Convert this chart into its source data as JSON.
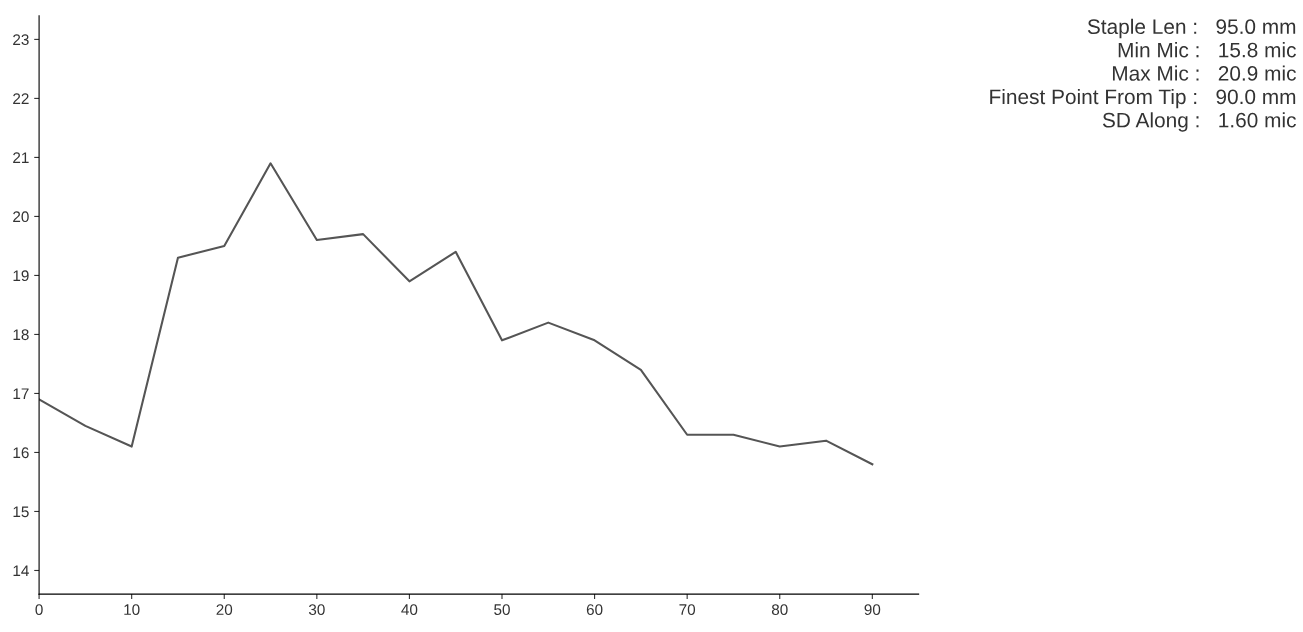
{
  "chart_data": {
    "type": "line",
    "x": [
      0,
      5,
      10,
      15,
      20,
      25,
      30,
      35,
      40,
      45,
      50,
      55,
      60,
      65,
      70,
      75,
      80,
      85,
      90
    ],
    "series": [
      {
        "color": "#555555",
        "values": [
          16.9,
          16.45,
          16.1,
          19.3,
          19.5,
          20.9,
          19.6,
          19.7,
          18.9,
          19.4,
          17.9,
          18.2,
          17.9,
          17.4,
          16.3,
          16.3,
          16.1,
          16.2,
          15.8
        ]
      }
    ],
    "xlim": [
      0,
      95
    ],
    "xticks": [
      0,
      10,
      20,
      30,
      40,
      50,
      60,
      70,
      80,
      90
    ],
    "ylim": [
      13.6,
      23.4
    ],
    "yticks": [
      14,
      15,
      16,
      17,
      18,
      19,
      20,
      21,
      22,
      23
    ],
    "grid": false,
    "legend": false,
    "marker": "none",
    "line_style": "solid",
    "annotations": [
      "Staple Len :   95.0 mm",
      "Min Mic :   15.8 mic",
      "Max Mic :   20.9 mic",
      "Finest Point From Tip :   90.0 mm",
      "SD Along :   1.60 mic"
    ]
  }
}
